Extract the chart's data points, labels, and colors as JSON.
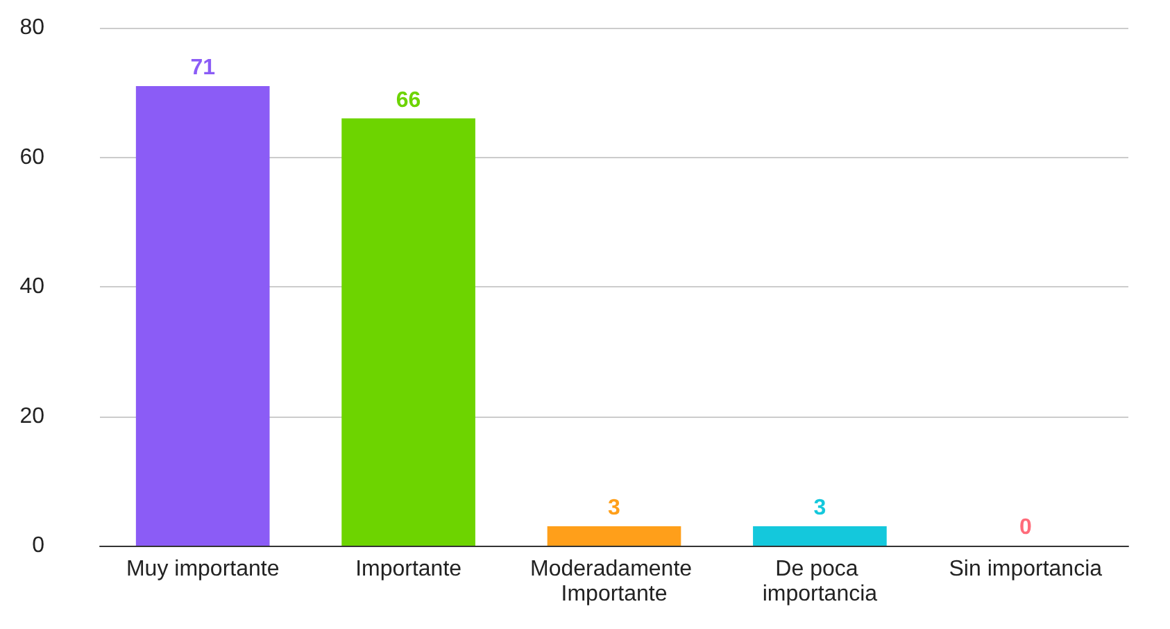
{
  "chart_data": {
    "type": "bar",
    "categories": [
      "Muy importante",
      "Importante",
      "Moderadamente Importante",
      "De poca importancia",
      "Sin importancia"
    ],
    "values": [
      71,
      66,
      3,
      3,
      0
    ],
    "colors": [
      "#8b5cf6",
      "#6dd400",
      "#ff9f1a",
      "#14c8dc",
      "#ff6b7a"
    ],
    "ylim": [
      0,
      80
    ],
    "yticks": [
      0,
      20,
      40,
      60,
      80
    ],
    "grid": "y",
    "data_labels": true
  }
}
